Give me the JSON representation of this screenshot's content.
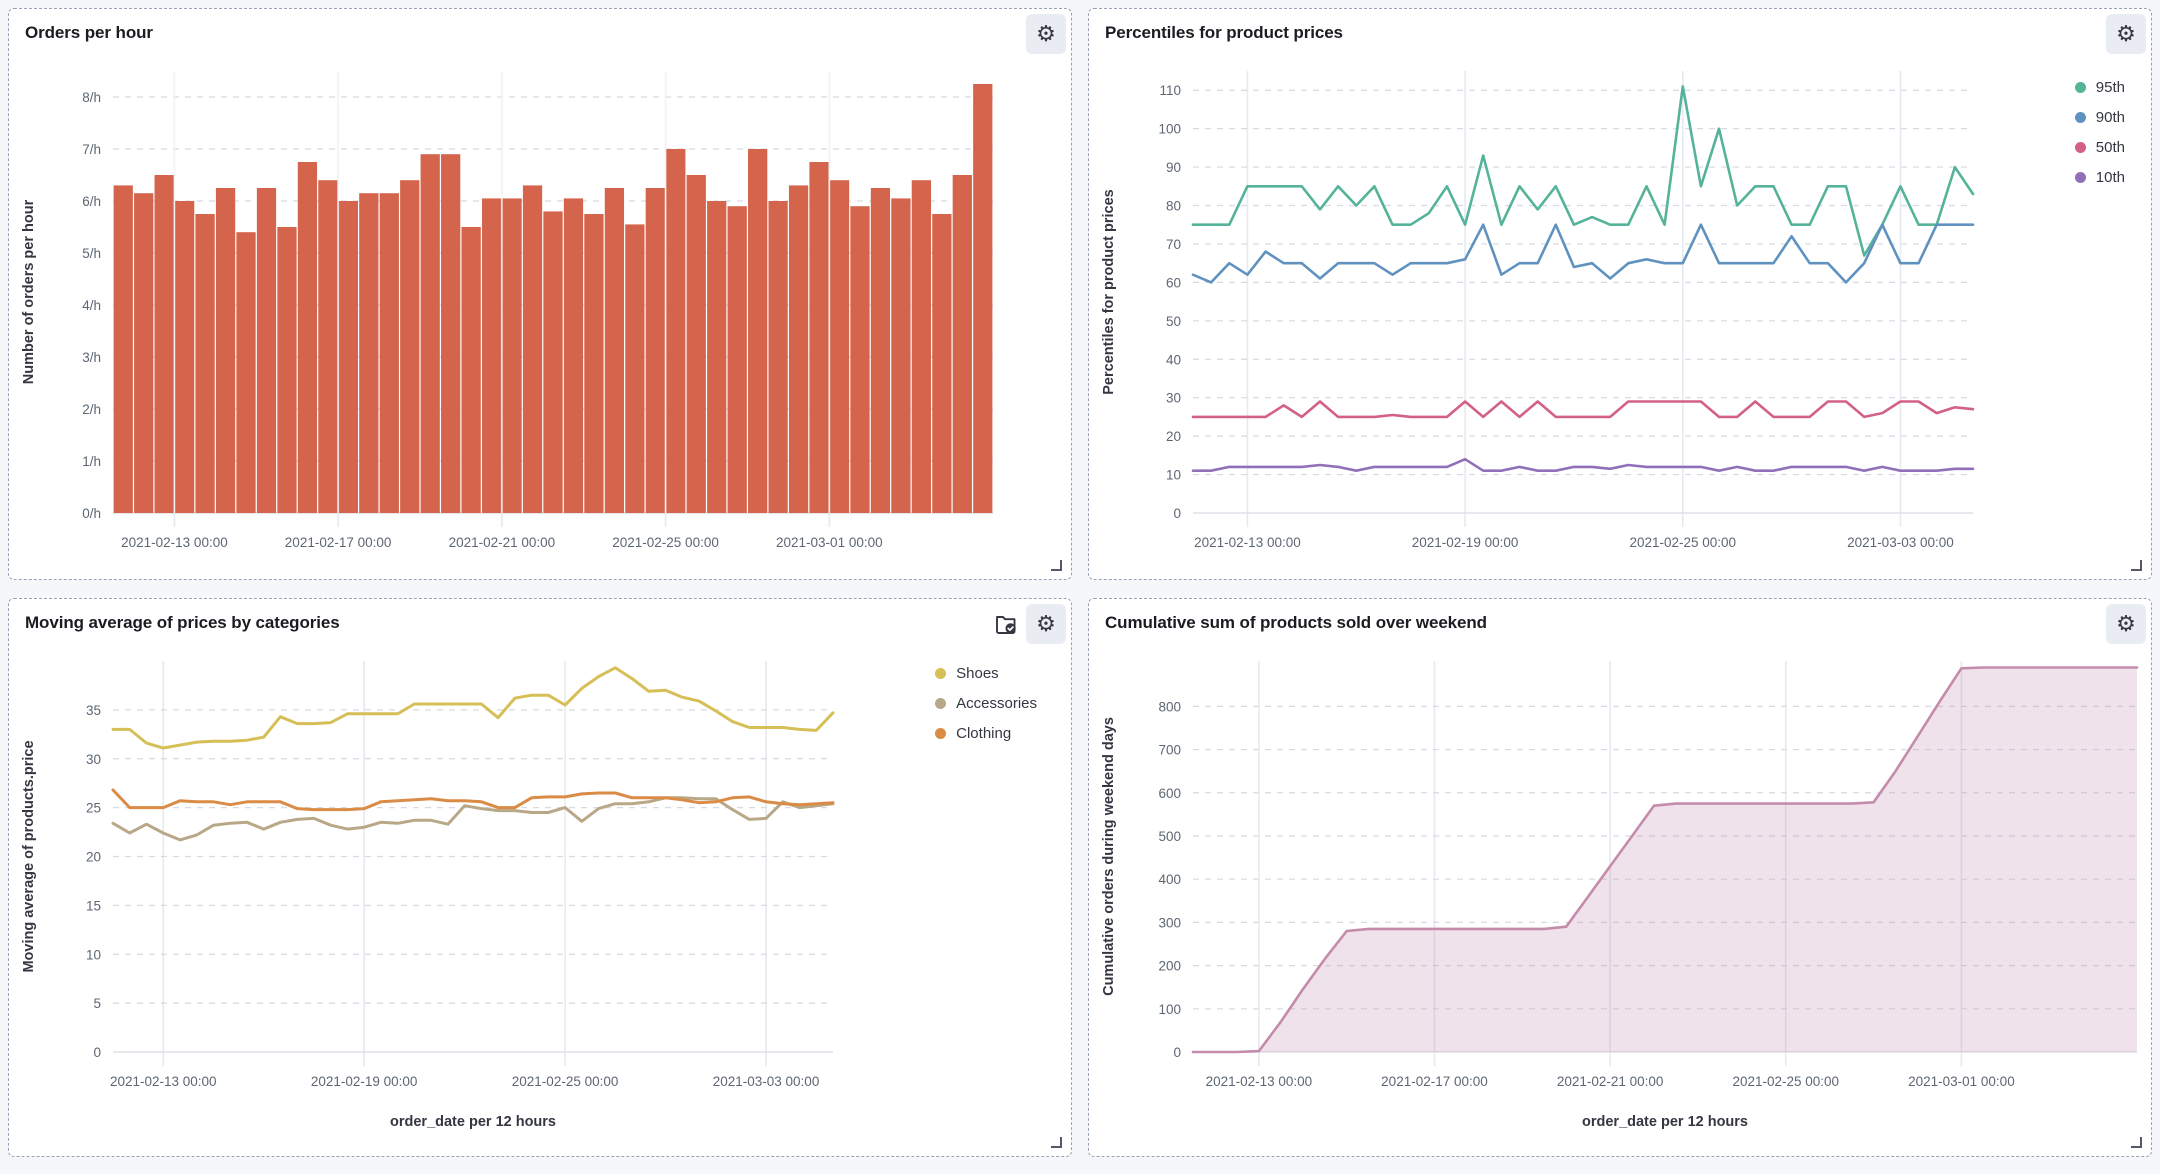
{
  "panels": [
    {
      "title": "Orders per hour",
      "chart_data": {
        "type": "bar",
        "ylabel": "Number of orders per hour",
        "xlabel": "",
        "color": "#D4654C",
        "ylim": [
          0,
          8.5
        ],
        "grid": "horizontal-dashed",
        "y_ticks": [
          {
            "v": 0,
            "label": "0/h"
          },
          {
            "v": 1,
            "label": "1/h"
          },
          {
            "v": 2,
            "label": "2/h"
          },
          {
            "v": 3,
            "label": "3/h"
          },
          {
            "v": 4,
            "label": "4/h"
          },
          {
            "v": 5,
            "label": "5/h"
          },
          {
            "v": 6,
            "label": "6/h"
          },
          {
            "v": 7,
            "label": "7/h"
          },
          {
            "v": 8,
            "label": "8/h"
          }
        ],
        "x_ticks": [
          {
            "f": 0.0698,
            "label": "2021-02-13 00:00"
          },
          {
            "f": 0.2558,
            "label": "2021-02-17 00:00"
          },
          {
            "f": 0.4419,
            "label": "2021-02-21 00:00"
          },
          {
            "f": 0.6279,
            "label": "2021-02-25 00:00"
          },
          {
            "f": 0.814,
            "label": "2021-03-01 00:00"
          }
        ],
        "values": [
          6.3,
          6.15,
          6.5,
          6.0,
          5.75,
          6.25,
          5.4,
          6.25,
          5.5,
          6.75,
          6.4,
          6.0,
          6.15,
          6.15,
          6.4,
          6.9,
          6.9,
          5.5,
          6.05,
          6.05,
          6.3,
          5.8,
          6.05,
          5.75,
          6.25,
          5.55,
          6.25,
          7.0,
          6.5,
          6.0,
          5.9,
          7.0,
          6.0,
          6.3,
          6.75,
          6.4,
          5.9,
          6.25,
          6.05,
          6.4,
          5.75,
          6.5,
          8.25
        ]
      }
    },
    {
      "title": "Percentiles for product prices",
      "chart_data": {
        "type": "line",
        "ylabel": "Percentiles for product prices",
        "xlabel": "",
        "ylim": [
          0,
          115
        ],
        "grid": "horizontal-dashed",
        "legend_position": "right-top",
        "y_ticks": [
          {
            "v": 0,
            "label": "0"
          },
          {
            "v": 10,
            "label": "10"
          },
          {
            "v": 20,
            "label": "20"
          },
          {
            "v": 30,
            "label": "30"
          },
          {
            "v": 40,
            "label": "40"
          },
          {
            "v": 50,
            "label": "50"
          },
          {
            "v": 60,
            "label": "60"
          },
          {
            "v": 70,
            "label": "70"
          },
          {
            "v": 80,
            "label": "80"
          },
          {
            "v": 90,
            "label": "90"
          },
          {
            "v": 100,
            "label": "100"
          },
          {
            "v": 110,
            "label": "110"
          }
        ],
        "x_ticks": [
          {
            "f": 0.0698,
            "label": "2021-02-13 00:00"
          },
          {
            "f": 0.3488,
            "label": "2021-02-19 00:00"
          },
          {
            "f": 0.6279,
            "label": "2021-02-25 00:00"
          },
          {
            "f": 0.907,
            "label": "2021-03-03 00:00"
          }
        ],
        "series": [
          {
            "name": "95th",
            "color": "#54B399",
            "values": [
              75,
              75,
              75,
              85,
              85,
              85,
              85,
              79,
              85,
              80,
              85,
              75,
              75,
              78,
              85,
              75,
              93,
              75,
              85,
              79,
              85,
              75,
              77,
              75,
              75,
              85,
              75,
              111,
              85,
              100,
              80,
              85,
              85,
              75,
              75,
              85,
              85,
              67,
              75,
              85,
              75,
              75,
              90,
              83
            ]
          },
          {
            "name": "90th",
            "color": "#6092C0",
            "values": [
              62,
              60,
              65,
              62,
              68,
              65,
              65,
              61,
              65,
              65,
              65,
              62,
              65,
              65,
              65,
              66,
              75,
              62,
              65,
              65,
              75,
              64,
              65,
              61,
              65,
              66,
              65,
              65,
              75,
              65,
              65,
              65,
              65,
              72,
              65,
              65,
              60,
              65,
              75,
              65,
              65,
              75,
              75,
              75
            ]
          },
          {
            "name": "50th",
            "color": "#D36086",
            "values": [
              25,
              25,
              25,
              25,
              25,
              28,
              25,
              29,
              25,
              25,
              25,
              25.5,
              25,
              25,
              25,
              29,
              25,
              29,
              25,
              29,
              25,
              25,
              25,
              25,
              29,
              29,
              29,
              29,
              29,
              25,
              25,
              29,
              25,
              25,
              25,
              29,
              29,
              25,
              26,
              29,
              29,
              26,
              27.5,
              27
            ]
          },
          {
            "name": "10th",
            "color": "#9170B8",
            "values": [
              11,
              11,
              12,
              12,
              12,
              12,
              12,
              12.5,
              12,
              11,
              12,
              12,
              12,
              12,
              12,
              14,
              11,
              11,
              12,
              11,
              11,
              12,
              12,
              11.5,
              12.5,
              12,
              12,
              12,
              12,
              11,
              12,
              11,
              11,
              12,
              12,
              12,
              12,
              11,
              12,
              11,
              11,
              11,
              11.5,
              11.5
            ]
          }
        ]
      }
    },
    {
      "title": "Moving average of prices by categories",
      "has_library_icon": true,
      "chart_data": {
        "type": "line",
        "ylabel": "Moving average of products.price",
        "xlabel": "order_date per 12 hours",
        "ylim": [
          0,
          40
        ],
        "grid": "horizontal-dashed",
        "legend_position": "right-top",
        "y_ticks": [
          {
            "v": 0,
            "label": "0"
          },
          {
            "v": 5,
            "label": "5"
          },
          {
            "v": 10,
            "label": "10"
          },
          {
            "v": 15,
            "label": "15"
          },
          {
            "v": 20,
            "label": "20"
          },
          {
            "v": 25,
            "label": "25"
          },
          {
            "v": 30,
            "label": "30"
          },
          {
            "v": 35,
            "label": "35"
          }
        ],
        "x_ticks": [
          {
            "f": 0.0698,
            "label": "2021-02-13 00:00"
          },
          {
            "f": 0.3488,
            "label": "2021-02-19 00:00"
          },
          {
            "f": 0.6279,
            "label": "2021-02-25 00:00"
          },
          {
            "f": 0.907,
            "label": "2021-03-03 00:00"
          }
        ],
        "series": [
          {
            "name": "Shoes",
            "color": "#D6BF57",
            "values": [
              33,
              33,
              31.6,
              31.1,
              31.4,
              31.7,
              31.8,
              31.8,
              31.9,
              32.2,
              34.3,
              33.6,
              33.6,
              33.7,
              34.6,
              34.6,
              34.6,
              34.6,
              35.6,
              35.6,
              35.6,
              35.6,
              35.6,
              34.2,
              36.2,
              36.5,
              36.5,
              35.5,
              37.2,
              38.4,
              39.3,
              38.2,
              36.9,
              37,
              36.3,
              35.9,
              34.9,
              33.8,
              33.2,
              33.2,
              33.2,
              33,
              32.9,
              34.7
            ]
          },
          {
            "name": "Accessories",
            "color": "#B9A888",
            "values": [
              23.4,
              22.4,
              23.3,
              22.4,
              21.7,
              22.2,
              23.2,
              23.4,
              23.5,
              22.8,
              23.5,
              23.8,
              23.9,
              23.2,
              22.8,
              23,
              23.5,
              23.4,
              23.7,
              23.7,
              23.3,
              25.2,
              24.9,
              24.7,
              24.7,
              24.5,
              24.5,
              25,
              23.6,
              24.9,
              25.4,
              25.4,
              25.6,
              26,
              26,
              25.9,
              25.9,
              24.8,
              23.8,
              23.9,
              25.6,
              25,
              25.2,
              25.4
            ]
          },
          {
            "name": "Clothing",
            "color": "#DA8B45",
            "values": [
              26.8,
              25,
              25,
              25,
              25.7,
              25.6,
              25.6,
              25.3,
              25.6,
              25.6,
              25.6,
              24.9,
              24.8,
              24.8,
              24.8,
              24.9,
              25.6,
              25.7,
              25.8,
              25.9,
              25.7,
              25.7,
              25.6,
              25,
              25,
              26,
              26.1,
              26.1,
              26.4,
              26.5,
              26.5,
              26,
              26,
              26,
              25.8,
              25.5,
              25.6,
              26,
              26.1,
              25.6,
              25.4,
              25.3,
              25.4,
              25.5
            ]
          }
        ]
      }
    },
    {
      "title": "Cumulative sum of products sold over weekend",
      "chart_data": {
        "type": "area",
        "ylabel": "Cumulative orders during weekend days",
        "xlabel": "order_date per 12 hours",
        "ylim": [
          0,
          905
        ],
        "grid": "horizontal-dashed",
        "y_ticks": [
          {
            "v": 0,
            "label": "0"
          },
          {
            "v": 100,
            "label": "100"
          },
          {
            "v": 200,
            "label": "200"
          },
          {
            "v": 300,
            "label": "300"
          },
          {
            "v": 400,
            "label": "400"
          },
          {
            "v": 500,
            "label": "500"
          },
          {
            "v": 600,
            "label": "600"
          },
          {
            "v": 700,
            "label": "700"
          },
          {
            "v": 800,
            "label": "800"
          }
        ],
        "x_ticks": [
          {
            "f": 0.0698,
            "label": "2021-02-13 00:00"
          },
          {
            "f": 0.2558,
            "label": "2021-02-17 00:00"
          },
          {
            "f": 0.4419,
            "label": "2021-02-21 00:00"
          },
          {
            "f": 0.6279,
            "label": "2021-02-25 00:00"
          },
          {
            "f": 0.814,
            "label": "2021-03-01 00:00"
          }
        ],
        "series": [
          {
            "name": "Cumulative orders",
            "color": "#C48BAB",
            "fill": "rgba(196,139,171,0.25)",
            "values": [
              0,
              0,
              0,
              2,
              70,
              145,
              215,
              280,
              285,
              285,
              285,
              285,
              285,
              285,
              285,
              285,
              285,
              290,
              360,
              430,
              500,
              570,
              575,
              575,
              575,
              575,
              575,
              575,
              575,
              575,
              575,
              578,
              650,
              730,
              810,
              888,
              890,
              890,
              890,
              890,
              890,
              890,
              890,
              890
            ]
          }
        ]
      }
    }
  ],
  "icons": {
    "gear": "⚙",
    "library": "folder-check"
  }
}
